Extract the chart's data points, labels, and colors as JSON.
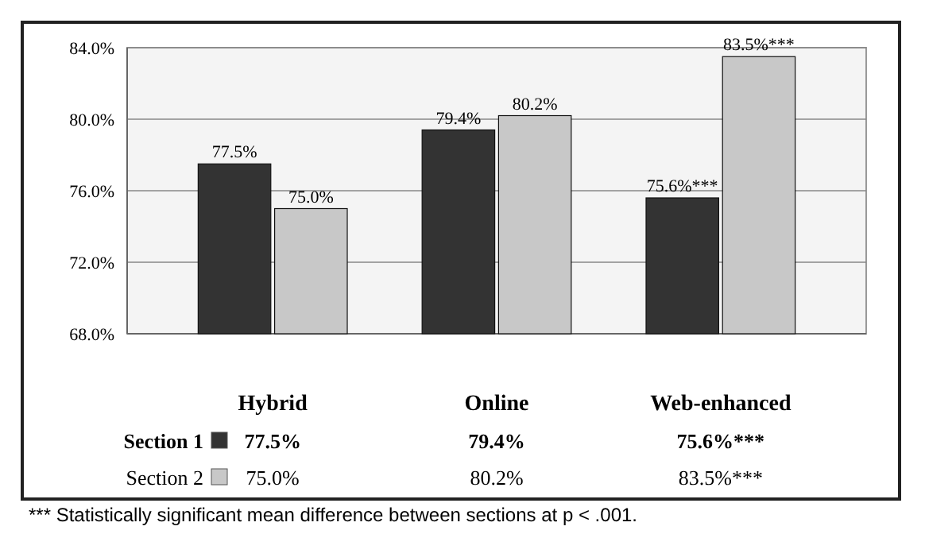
{
  "chart_data": {
    "type": "bar",
    "categories": [
      "Hybrid",
      "Online",
      "Web-enhanced"
    ],
    "series": [
      {
        "name": "Section 1",
        "color": "#333333",
        "values": [
          77.5,
          79.4,
          75.6
        ],
        "value_labels": [
          "77.5%",
          "79.4%",
          "75.6%***"
        ]
      },
      {
        "name": "Section 2",
        "color": "#c8c8c8",
        "values": [
          75.0,
          80.2,
          83.5
        ],
        "value_labels": [
          "75.0%",
          "80.2%",
          "83.5%***"
        ]
      }
    ],
    "ylim": [
      68,
      84
    ],
    "yticks": [
      {
        "value": 68,
        "label": "68.0%"
      },
      {
        "value": 72,
        "label": "72.0%"
      },
      {
        "value": 76,
        "label": "76.0%"
      },
      {
        "value": 80,
        "label": "80.0%"
      },
      {
        "value": 84,
        "label": "84.0%"
      }
    ],
    "grid": "y",
    "legend": "bottom",
    "annotations": [
      "*** Statistically significant mean difference between sections at p < .001."
    ]
  }
}
